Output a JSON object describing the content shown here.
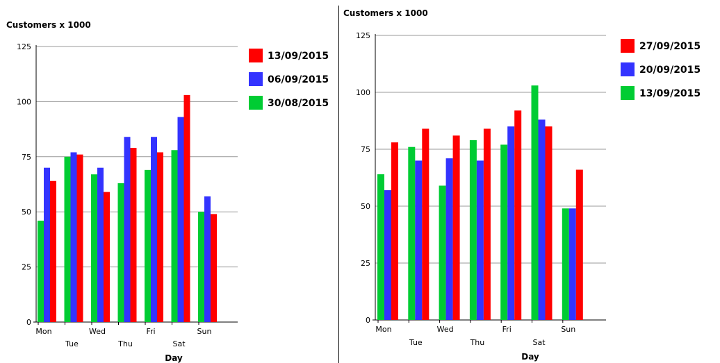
{
  "colors": {
    "red": "#ff0000",
    "blue": "#3333ff",
    "green": "#00cc33",
    "grid": "#999999",
    "axis": "#000000"
  },
  "chart_data": [
    {
      "type": "bar",
      "title": "Customers x 1000",
      "xlabel": "Day",
      "ylabel": "",
      "ylim": [
        0,
        125
      ],
      "yticks": [
        0,
        25,
        50,
        75,
        100,
        125
      ],
      "categories": [
        "Mon",
        "Tue",
        "Wed",
        "Thu",
        "Fri",
        "Sat",
        "Sun"
      ],
      "series": [
        {
          "name": "30/08/2015",
          "color": "green",
          "values": [
            46,
            75,
            67,
            63,
            69,
            78,
            50
          ]
        },
        {
          "name": "06/09/2015",
          "color": "blue",
          "values": [
            70,
            77,
            70,
            84,
            84,
            93,
            57
          ]
        },
        {
          "name": "13/09/2015",
          "color": "red",
          "values": [
            64,
            76,
            59,
            79,
            77,
            103,
            49
          ]
        }
      ],
      "legend_order": [
        2,
        1,
        0
      ],
      "legend_position": "top-right",
      "grid": true
    },
    {
      "type": "bar",
      "title": "Customers x 1000",
      "xlabel": "Day",
      "ylabel": "",
      "ylim": [
        0,
        125
      ],
      "yticks": [
        0,
        25,
        50,
        75,
        100,
        125
      ],
      "categories": [
        "Mon",
        "Tue",
        "Wed",
        "Thu",
        "Fri",
        "Sat",
        "Sun"
      ],
      "series": [
        {
          "name": "13/09/2015",
          "color": "green",
          "values": [
            64,
            76,
            59,
            79,
            77,
            103,
            49
          ]
        },
        {
          "name": "20/09/2015",
          "color": "blue",
          "values": [
            57,
            70,
            71,
            70,
            85,
            88,
            49
          ]
        },
        {
          "name": "27/09/2015",
          "color": "red",
          "values": [
            78,
            84,
            81,
            84,
            92,
            85,
            66
          ]
        }
      ],
      "legend_order": [
        2,
        1,
        0
      ],
      "legend_position": "top-right",
      "grid": true
    }
  ]
}
